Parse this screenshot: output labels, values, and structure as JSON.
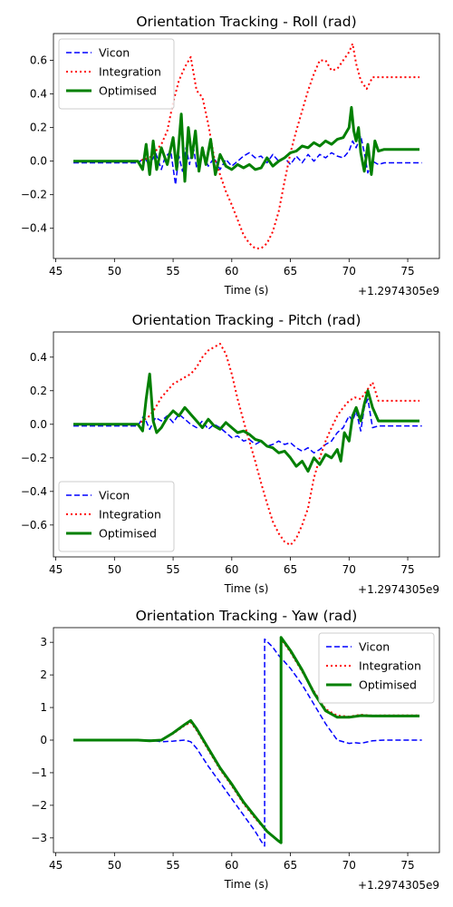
{
  "figure_width": 500,
  "figure_height": 1000,
  "offset_label": "+1.2974305e9",
  "chart_data": [
    {
      "type": "line",
      "title": "Orientation Tracking - Roll (rad)",
      "xlabel": "Time (s)",
      "ylabel": "",
      "xlim": [
        44.8,
        77.7
      ],
      "ylim": [
        -0.58,
        0.76
      ],
      "xticks": [
        45,
        50,
        55,
        60,
        65,
        70,
        75
      ],
      "yticks": [
        -0.4,
        -0.2,
        0.0,
        0.2,
        0.4,
        0.6
      ],
      "ytick_labels": [
        "−0.4",
        "−0.2",
        "0.0",
        "0.2",
        "0.4",
        "0.6"
      ],
      "legend_position": "upper-left",
      "series": [
        {
          "name": "Vicon",
          "color": "#0000ff",
          "style": "dashed",
          "width": 1.5,
          "x": [
            46.5,
            52,
            52.6,
            53,
            53.5,
            54,
            54.3,
            54.8,
            55.2,
            55.5,
            55.8,
            56.1,
            56.4,
            56.7,
            57,
            57.5,
            58,
            58.5,
            59,
            59.5,
            60,
            60.5,
            61,
            61.5,
            62,
            62.5,
            63,
            63.5,
            64,
            64.5,
            65,
            65.5,
            66,
            66.5,
            67,
            67.5,
            68,
            68.5,
            69,
            69.5,
            70,
            70.3,
            70.6,
            71,
            71.3,
            71.6,
            72,
            72.5,
            73,
            74,
            75,
            76.2
          ],
          "y": [
            -0.01,
            -0.01,
            0.02,
            -0.03,
            0.05,
            -0.05,
            0.02,
            0.06,
            -0.14,
            0.03,
            -0.06,
            0.08,
            -0.02,
            0.1,
            -0.04,
            0.05,
            -0.03,
            0.02,
            -0.05,
            0.01,
            -0.03,
            0.0,
            0.03,
            0.05,
            0.02,
            0.03,
            -0.01,
            0.04,
            0.0,
            0.02,
            -0.02,
            0.03,
            -0.01,
            0.04,
            0.0,
            0.04,
            0.02,
            0.05,
            0.03,
            0.02,
            0.06,
            0.12,
            0.08,
            0.15,
            0.05,
            -0.07,
            0.0,
            -0.02,
            -0.01,
            -0.01,
            -0.01,
            -0.01
          ]
        },
        {
          "name": "Integration",
          "color": "#ff0000",
          "style": "dotted",
          "width": 2,
          "x": [
            46.5,
            52,
            53,
            54,
            54.5,
            55,
            55.5,
            56,
            56.5,
            57,
            57.5,
            58,
            58.5,
            59,
            59.5,
            60,
            60.5,
            61,
            61.5,
            62,
            62.5,
            63,
            63.5,
            64,
            64.5,
            65,
            65.5,
            66,
            66.5,
            67,
            67.5,
            68,
            68.5,
            69,
            69.5,
            70,
            70.3,
            70.6,
            71,
            71.5,
            72,
            72.5,
            73,
            74,
            75,
            76
          ],
          "y": [
            0.0,
            0.0,
            0.02,
            0.1,
            0.18,
            0.35,
            0.48,
            0.56,
            0.62,
            0.42,
            0.38,
            0.22,
            0.02,
            -0.08,
            -0.18,
            -0.26,
            -0.35,
            -0.44,
            -0.49,
            -0.52,
            -0.52,
            -0.49,
            -0.42,
            -0.3,
            -0.12,
            0.05,
            0.18,
            0.3,
            0.42,
            0.52,
            0.6,
            0.6,
            0.54,
            0.55,
            0.6,
            0.65,
            0.7,
            0.58,
            0.48,
            0.43,
            0.5,
            0.5,
            0.5,
            0.5,
            0.5,
            0.5
          ]
        },
        {
          "name": "Optimised",
          "color": "#008000",
          "style": "solid",
          "width": 3,
          "x": [
            46.5,
            52,
            52.4,
            52.7,
            53,
            53.3,
            53.6,
            54,
            54.5,
            55,
            55.3,
            55.7,
            56,
            56.3,
            56.6,
            56.9,
            57.2,
            57.5,
            57.8,
            58.2,
            58.6,
            59,
            59.5,
            60,
            60.5,
            61,
            61.5,
            62,
            62.5,
            63,
            63.5,
            64,
            64.5,
            65,
            65.5,
            66,
            66.5,
            67,
            67.5,
            68,
            68.5,
            69,
            69.5,
            70,
            70.2,
            70.4,
            70.6,
            70.8,
            71,
            71.3,
            71.6,
            71.9,
            72.2,
            72.5,
            73,
            74,
            75,
            76
          ],
          "y": [
            0.0,
            0.0,
            -0.05,
            0.1,
            -0.08,
            0.12,
            -0.05,
            0.08,
            -0.02,
            0.14,
            -0.05,
            0.28,
            -0.12,
            0.2,
            0.02,
            0.18,
            -0.06,
            0.08,
            -0.02,
            0.13,
            -0.08,
            0.04,
            -0.03,
            -0.05,
            -0.02,
            -0.04,
            -0.02,
            -0.05,
            -0.04,
            0.02,
            -0.03,
            0.0,
            0.02,
            0.05,
            0.06,
            0.09,
            0.08,
            0.11,
            0.09,
            0.12,
            0.1,
            0.13,
            0.14,
            0.2,
            0.32,
            0.18,
            0.12,
            0.2,
            0.05,
            -0.06,
            0.1,
            -0.08,
            0.12,
            0.06,
            0.07,
            0.07,
            0.07,
            0.07
          ]
        }
      ]
    },
    {
      "type": "line",
      "title": "Orientation Tracking - Pitch (rad)",
      "xlabel": "Time (s)",
      "ylabel": "",
      "xlim": [
        44.8,
        77.7
      ],
      "ylim": [
        -0.79,
        0.55
      ],
      "xticks": [
        45,
        50,
        55,
        60,
        65,
        70,
        75
      ],
      "yticks": [
        -0.6,
        -0.4,
        -0.2,
        0.0,
        0.2,
        0.4
      ],
      "ytick_labels": [
        "−0.6",
        "−0.4",
        "−0.2",
        "0.0",
        "0.2",
        "0.4"
      ],
      "legend_position": "lower-left",
      "series": [
        {
          "name": "Vicon",
          "color": "#0000ff",
          "style": "dashed",
          "width": 1.5,
          "x": [
            46.5,
            52,
            52.5,
            53,
            53.5,
            54,
            54.5,
            55,
            55.5,
            56,
            56.5,
            57,
            57.5,
            58,
            58.5,
            59,
            59.5,
            60,
            60.5,
            61,
            61.5,
            62,
            62.5,
            63,
            63.5,
            64,
            64.5,
            65,
            65.5,
            66,
            66.5,
            67,
            67.5,
            68,
            68.5,
            69,
            69.5,
            70,
            70.3,
            70.6,
            71,
            71.3,
            71.6,
            72,
            72.5,
            73,
            74,
            75,
            76.2
          ],
          "y": [
            -0.01,
            -0.01,
            0.05,
            -0.03,
            0.04,
            0.02,
            0.05,
            0.01,
            0.06,
            0.03,
            0.0,
            -0.02,
            0.02,
            -0.03,
            0.0,
            -0.02,
            -0.05,
            -0.08,
            -0.07,
            -0.1,
            -0.09,
            -0.12,
            -0.1,
            -0.13,
            -0.12,
            -0.1,
            -0.12,
            -0.11,
            -0.14,
            -0.16,
            -0.14,
            -0.17,
            -0.15,
            -0.12,
            -0.1,
            -0.05,
            -0.02,
            0.05,
            0.02,
            0.08,
            -0.04,
            0.1,
            0.15,
            -0.02,
            -0.01,
            -0.01,
            -0.01,
            -0.01,
            -0.01
          ]
        },
        {
          "name": "Integration",
          "color": "#ff0000",
          "style": "dotted",
          "width": 2,
          "x": [
            46.5,
            52,
            53,
            53.5,
            54,
            54.5,
            55,
            55.5,
            56,
            56.5,
            57,
            57.5,
            58,
            58.5,
            59,
            59.5,
            60,
            60.5,
            61,
            61.5,
            62,
            62.5,
            63,
            63.5,
            64,
            64.5,
            65,
            65.5,
            66,
            66.5,
            67,
            67.5,
            68,
            68.5,
            69,
            69.5,
            70,
            70.5,
            71,
            71.5,
            72,
            72.5,
            73,
            74,
            75,
            76
          ],
          "y": [
            0.0,
            0.0,
            0.05,
            0.1,
            0.16,
            0.2,
            0.24,
            0.26,
            0.28,
            0.3,
            0.34,
            0.4,
            0.44,
            0.46,
            0.48,
            0.42,
            0.3,
            0.15,
            0.02,
            -0.1,
            -0.22,
            -0.35,
            -0.47,
            -0.58,
            -0.65,
            -0.7,
            -0.72,
            -0.68,
            -0.6,
            -0.5,
            -0.32,
            -0.2,
            -0.1,
            -0.02,
            0.05,
            0.1,
            0.14,
            0.16,
            0.15,
            0.2,
            0.25,
            0.14,
            0.14,
            0.14,
            0.14,
            0.14
          ]
        },
        {
          "name": "Optimised",
          "color": "#008000",
          "style": "solid",
          "width": 3,
          "x": [
            46.5,
            52,
            52.4,
            52.7,
            53,
            53.3,
            53.6,
            54,
            54.5,
            55,
            55.5,
            56,
            56.5,
            57,
            57.5,
            58,
            58.5,
            59,
            59.5,
            60,
            60.5,
            61,
            61.5,
            62,
            62.5,
            63,
            63.5,
            64,
            64.5,
            65,
            65.5,
            66,
            66.5,
            67,
            67.5,
            68,
            68.5,
            69,
            69.3,
            69.6,
            70,
            70.3,
            70.6,
            71,
            71.3,
            71.6,
            72,
            72.5,
            73,
            74,
            75,
            76
          ],
          "y": [
            0.0,
            0.0,
            -0.04,
            0.15,
            0.3,
            0.02,
            -0.05,
            -0.02,
            0.04,
            0.08,
            0.05,
            0.1,
            0.06,
            0.02,
            -0.02,
            0.03,
            -0.01,
            -0.03,
            0.01,
            -0.02,
            -0.05,
            -0.04,
            -0.06,
            -0.09,
            -0.1,
            -0.13,
            -0.14,
            -0.17,
            -0.16,
            -0.2,
            -0.25,
            -0.22,
            -0.28,
            -0.2,
            -0.24,
            -0.18,
            -0.2,
            -0.15,
            -0.22,
            -0.05,
            -0.1,
            0.05,
            0.1,
            0.02,
            0.12,
            0.2,
            0.1,
            0.02,
            0.02,
            0.02,
            0.02,
            0.02
          ]
        }
      ]
    },
    {
      "type": "line",
      "title": "Orientation Tracking - Yaw (rad)",
      "xlabel": "Time (s)",
      "ylabel": "",
      "xlim": [
        44.8,
        77.7
      ],
      "ylim": [
        -3.45,
        3.45
      ],
      "xticks": [
        45,
        50,
        55,
        60,
        65,
        70,
        75
      ],
      "yticks": [
        -3,
        -2,
        -1,
        0,
        1,
        2,
        3
      ],
      "ytick_labels": [
        "−3",
        "−2",
        "−1",
        "0",
        "1",
        "2",
        "3"
      ],
      "legend_position": "upper-right",
      "series": [
        {
          "name": "Vicon",
          "color": "#0000ff",
          "style": "dashed",
          "width": 1.5,
          "x": [
            46.5,
            50,
            52,
            53,
            54,
            55,
            56,
            56.5,
            57,
            58,
            59,
            60,
            61,
            62,
            62.5,
            62.8,
            62.8,
            63.5,
            64,
            65,
            66,
            67,
            68,
            69,
            70,
            70.5,
            71,
            72,
            73,
            74,
            75,
            76.2
          ],
          "y": [
            0.0,
            0.0,
            -0.02,
            0.0,
            -0.05,
            -0.03,
            0.0,
            -0.05,
            -0.25,
            -0.8,
            -1.3,
            -1.8,
            -2.3,
            -2.8,
            -3.1,
            -3.25,
            3.1,
            2.85,
            2.6,
            2.2,
            1.7,
            1.1,
            0.5,
            0.0,
            -0.1,
            -0.08,
            -0.1,
            -0.02,
            0.0,
            0.0,
            0.0,
            0.0
          ]
        },
        {
          "name": "Integration",
          "color": "#ff0000",
          "style": "dotted",
          "width": 2,
          "x": [
            46.5,
            50,
            52,
            53,
            54,
            55,
            56,
            56.5,
            57,
            58,
            59,
            60,
            61,
            62,
            63,
            64,
            64.2,
            64.2,
            65,
            66,
            67,
            68,
            69,
            70,
            71,
            72,
            73,
            74,
            75,
            76
          ],
          "y": [
            0.0,
            0.0,
            0.0,
            -0.02,
            0.0,
            0.2,
            0.45,
            0.55,
            0.3,
            -0.3,
            -0.9,
            -1.4,
            -1.95,
            -2.4,
            -2.8,
            -3.1,
            -3.15,
            3.1,
            2.7,
            2.1,
            1.5,
            0.95,
            0.75,
            0.72,
            0.78,
            0.75,
            0.76,
            0.76,
            0.76,
            0.76
          ]
        },
        {
          "name": "Optimised",
          "color": "#008000",
          "style": "solid",
          "width": 3,
          "x": [
            46.5,
            50,
            52,
            53,
            54,
            55,
            56,
            56.5,
            57,
            58,
            59,
            60,
            61,
            62,
            63,
            64,
            64.2,
            64.2,
            65,
            66,
            67,
            68,
            69,
            70,
            71,
            72,
            73,
            74,
            75,
            76
          ],
          "y": [
            0.0,
            0.0,
            0.0,
            -0.02,
            0.0,
            0.22,
            0.48,
            0.6,
            0.35,
            -0.25,
            -0.85,
            -1.35,
            -1.9,
            -2.35,
            -2.8,
            -3.1,
            -3.15,
            3.15,
            2.75,
            2.15,
            1.45,
            0.9,
            0.7,
            0.7,
            0.75,
            0.74,
            0.74,
            0.74,
            0.74,
            0.74
          ]
        }
      ]
    }
  ]
}
